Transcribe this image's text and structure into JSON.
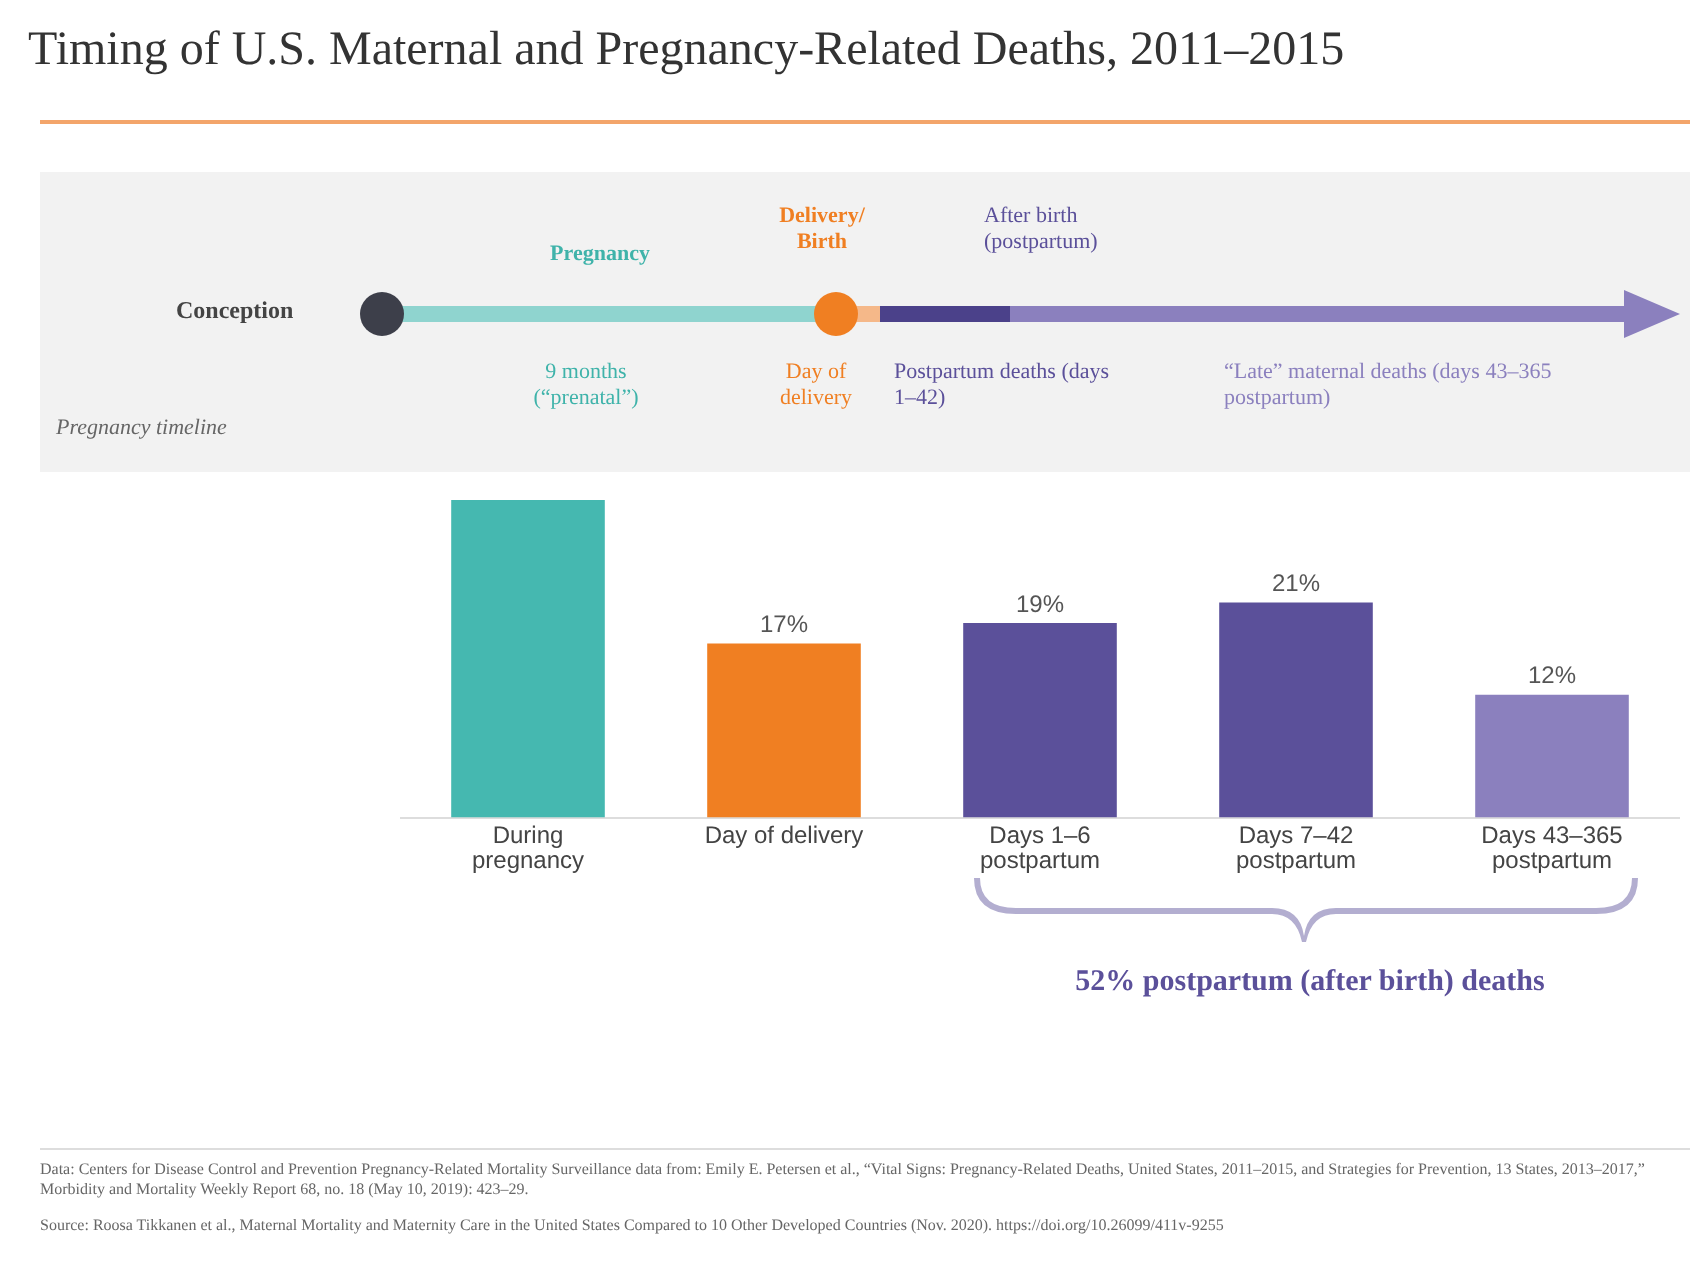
{
  "chart_data": {
    "type": "bar",
    "title": "Timing of U.S. Maternal and Pregnancy-Related Deaths, 2011–2015",
    "categories": [
      "During pregnancy",
      "Day of delivery",
      "Days 1–6 postpartum",
      "Days 7–42 postpartum",
      "Days 43–365 postpartum"
    ],
    "values": [
      31,
      17,
      19,
      21,
      12
    ],
    "colors": [
      "#45b8b0",
      "#f07f22",
      "#5b509a",
      "#5b509a",
      "#8b80be"
    ],
    "value_labels": [
      null,
      "17%",
      "19%",
      "21%",
      "12%"
    ],
    "grid": false,
    "legend": false,
    "annotations": [
      "Conception",
      "Pregnancy",
      "Delivery/ Birth",
      "After birth (postpartum)",
      "9 months (“prenatal”)",
      "Day of delivery",
      "Postpartum deaths (days 1–42)",
      "“Late” maternal deaths (days 43–365 postpartum)",
      "Pregnancy timeline",
      "52% postpartum (after birth) deaths",
      "Data: Centers for Disease Control and Prevention Pregnancy-Related Mortality Surveillance data from: Emily E. Petersen et al., “Vital Signs: Pregnancy-Related Deaths, United States, 2011–2015, and Strategies for Prevention, 13 States, 2013–2017,” Morbidity and Mortality Weekly Report 68, no. 18 (May 10, 2019): 423–29.",
      "Source: Roosa Tikkanen et al., Maternal Mortality and Maternity Care in the United States Compared to 10 Other Developed Countries (Nov. 2020). https://doi.org/10.26099/411v-9255"
    ]
  }
}
